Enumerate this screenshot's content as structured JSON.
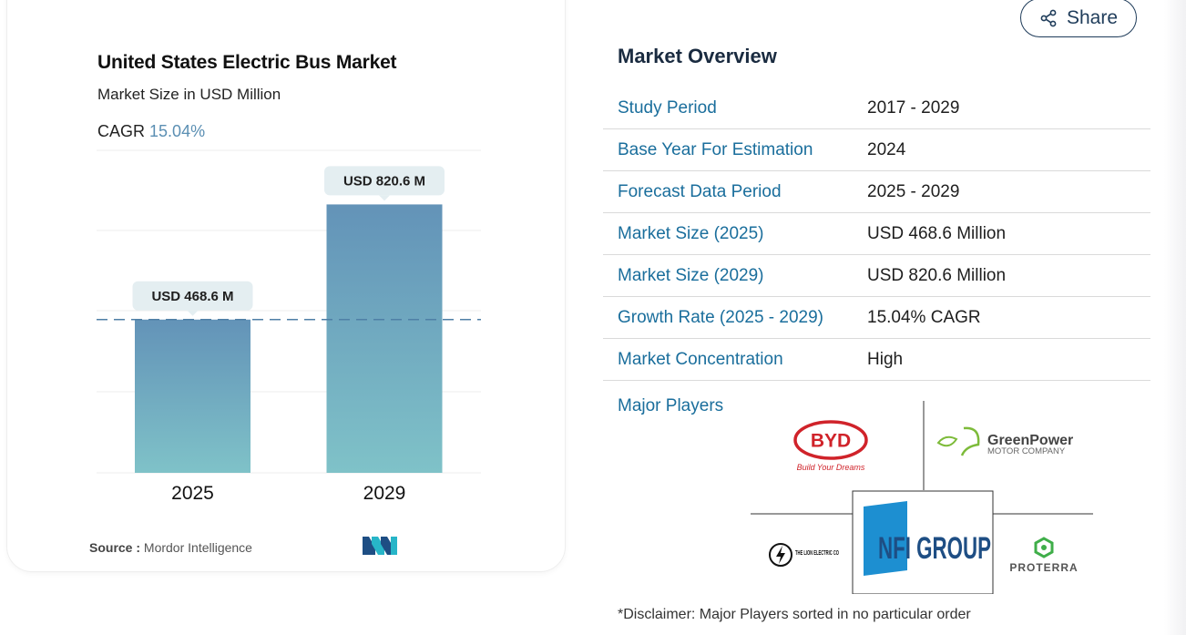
{
  "chart_card": {
    "title": "United States Electric Bus Market",
    "subtitle": "Market Size in USD Million",
    "cagr_label": "CAGR",
    "cagr_value": "15.04%",
    "source_label": "Source :",
    "source_value": "Mordor Intelligence"
  },
  "chart_data": {
    "type": "bar",
    "title": "United States Electric Bus Market",
    "subtitle": "Market Size in USD Million",
    "categories": [
      "2025",
      "2029"
    ],
    "values": [
      468.6,
      820.6
    ],
    "data_labels": [
      "USD 468.6 M",
      "USD 820.6 M"
    ],
    "ylim": [
      0,
      1000
    ],
    "grid": true,
    "reference_line": 468.6,
    "bar_color_top": "#6393b8",
    "bar_color_bottom": "#7fc2c8"
  },
  "share": {
    "label": "Share"
  },
  "overview": {
    "title": "Market Overview",
    "rows": [
      {
        "key": "Study Period",
        "value": "2017 - 2029"
      },
      {
        "key": "Base Year For Estimation",
        "value": "2024"
      },
      {
        "key": "Forecast Data Period",
        "value": "2025 - 2029"
      },
      {
        "key": "Market Size (2025)",
        "value": "USD 468.6 Million"
      },
      {
        "key": "Market Size (2029)",
        "value": "USD 820.6 Million"
      },
      {
        "key": "Growth Rate (2025 - 2029)",
        "value": "15.04% CAGR"
      },
      {
        "key": "Market Concentration",
        "value": "High"
      }
    ]
  },
  "players": {
    "label": "Major Players",
    "logos": [
      {
        "name": "BYD",
        "tagline": "Build Your Dreams"
      },
      {
        "name": "GreenPower",
        "tagline": "MOTOR COMPANY"
      },
      {
        "name": "THE LION ELECTRIC CO"
      },
      {
        "name": "NFI GROUP"
      },
      {
        "name": "PROTERRA"
      }
    ]
  },
  "disclaimer": "*Disclaimer: Major Players sorted in no particular order",
  "colors": {
    "accent": "#1a6e9c",
    "cagr": "#5b8fb3",
    "navy": "#1f3c5a"
  }
}
